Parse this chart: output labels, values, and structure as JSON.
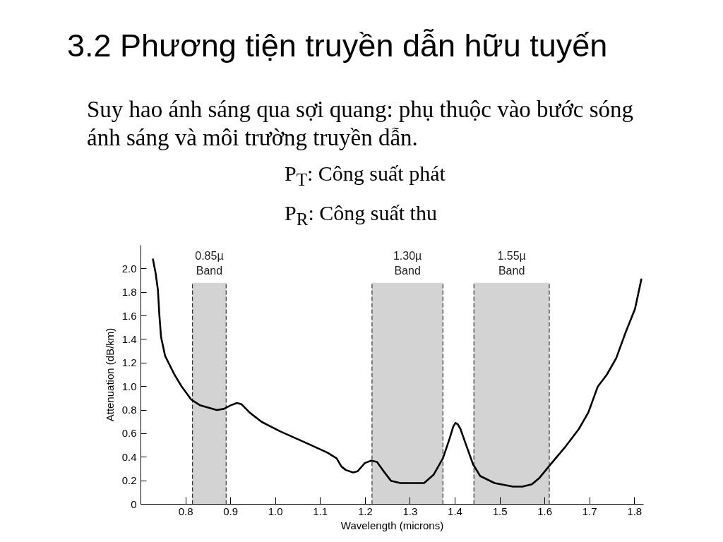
{
  "chart_data": {
    "type": "line",
    "title": "3.2 Phương tiện truyền dẫn hữu tuyến",
    "subtitle": "Suy hao ánh sáng qua sợi quang: phụ thuộc vào bước sóng ánh sáng và môi trường truyền dẫn.",
    "annotations": [
      "P$_{T}$: Công suất phát",
      "P$_{R}$: Công suất thu"
    ],
    "xlabel": "Wavelength (microns)",
    "ylabel": "Attenuation (dB/km)",
    "x": [
      0.727,
      0.733,
      0.738,
      0.741,
      0.745,
      0.754,
      0.775,
      0.791,
      0.812,
      0.832,
      0.869,
      0.885,
      0.9,
      0.914,
      0.924,
      0.942,
      0.969,
      1.01,
      1.063,
      1.115,
      1.136,
      1.147,
      1.157,
      1.173,
      1.183,
      1.199,
      1.213,
      1.226,
      1.239,
      1.257,
      1.278,
      1.305,
      1.331,
      1.352,
      1.373,
      1.388,
      1.396,
      1.401,
      1.406,
      1.412,
      1.425,
      1.44,
      1.456,
      1.488,
      1.529,
      1.55,
      1.571,
      1.587,
      1.611,
      1.644,
      1.676,
      1.697,
      1.718,
      1.738,
      1.759,
      1.78,
      1.801,
      1.815
    ],
    "values": [
      2.08,
      1.96,
      1.82,
      1.62,
      1.42,
      1.26,
      1.1,
      1.0,
      0.89,
      0.84,
      0.8,
      0.81,
      0.84,
      0.86,
      0.85,
      0.78,
      0.7,
      0.62,
      0.53,
      0.44,
      0.39,
      0.32,
      0.29,
      0.27,
      0.28,
      0.35,
      0.37,
      0.36,
      0.29,
      0.2,
      0.18,
      0.18,
      0.18,
      0.25,
      0.39,
      0.56,
      0.66,
      0.69,
      0.68,
      0.64,
      0.5,
      0.34,
      0.24,
      0.18,
      0.15,
      0.15,
      0.17,
      0.22,
      0.33,
      0.48,
      0.64,
      0.78,
      1.0,
      1.1,
      1.24,
      1.46,
      1.66,
      1.91
    ],
    "color": "#000000",
    "xlim": [
      0.7,
      1.82
    ],
    "xticks": [
      0.8,
      0.9,
      {
        "value": 1.0,
        "label": "1.0"
      },
      1.1,
      1.2,
      1.3,
      1.4,
      1.5,
      1.6,
      1.7,
      1.8
    ],
    "ylim": [
      0,
      2.2
    ],
    "yticks": [
      0,
      0.2,
      0.4,
      0.6,
      0.8,
      {
        "value": 1.0,
        "label": "1.0"
      },
      1.2,
      1.4,
      1.6,
      1.8,
      {
        "value": 2.0,
        "label": "2.0"
      }
    ],
    "bands": [
      {
        "axis": "x",
        "from": 0.815,
        "to": 0.89,
        "label": "0.85µ\nBand",
        "color": "#d3d3d3"
      },
      {
        "axis": "x",
        "from": 1.215,
        "to": 1.373,
        "label": "1.30µ\nBand",
        "color": "#d3d3d3"
      },
      {
        "axis": "x",
        "from": 1.442,
        "to": 1.61,
        "label": "1.55µ\nBand",
        "color": "#d3d3d3"
      }
    ],
    "grid": false,
    "marker": "none",
    "line_style": "solid"
  }
}
